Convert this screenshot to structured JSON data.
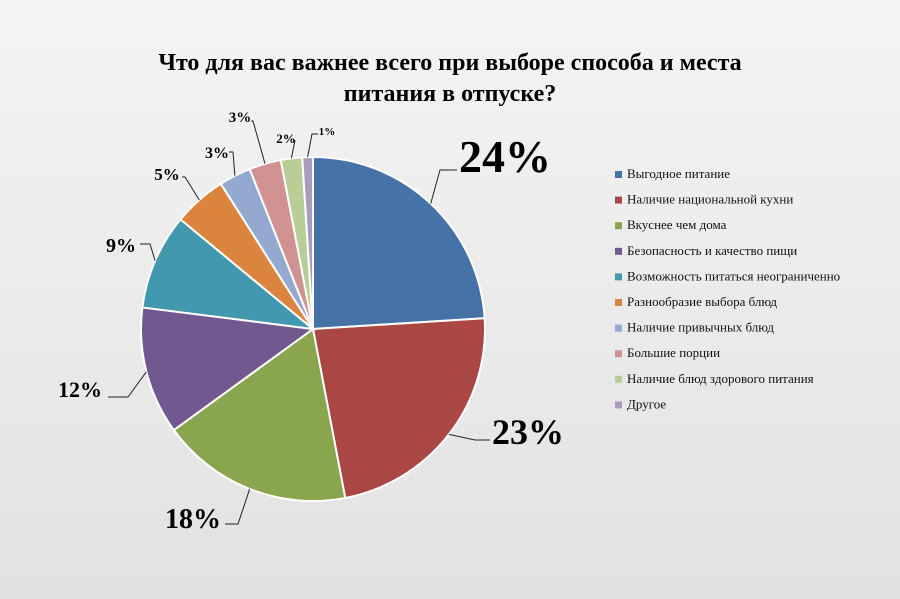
{
  "chart_data": {
    "type": "pie",
    "title": [
      "Что для вас важнее всего при выборе способа и места",
      "питания в отпуске?"
    ],
    "legend_position": "right",
    "labels_show_percent": true,
    "slices": [
      {
        "label": "Выгодное питание",
        "value": 24,
        "display": "24%",
        "color": "#4572A7"
      },
      {
        "label": "Наличие национальной  кухни",
        "value": 23,
        "display": "23%",
        "color": "#AA4643"
      },
      {
        "label": "Вкуснее чем дома",
        "value": 18,
        "display": "18%",
        "color": "#89A54E"
      },
      {
        "label": "Безопасность и качество пищи",
        "value": 12,
        "display": "12%",
        "color": "#71588F"
      },
      {
        "label": "Возможность питаться неограниченно",
        "value": 9,
        "display": "9%",
        "color": "#4198AF"
      },
      {
        "label": "Разнообразие выбора блюд",
        "value": 5,
        "display": "5%",
        "color": "#DB843D"
      },
      {
        "label": "Наличие привычных  блюд",
        "value": 3,
        "display": "3%",
        "color": "#93A9CF"
      },
      {
        "label": "Большие порции",
        "value": 3,
        "display": "3%",
        "color": "#D19392"
      },
      {
        "label": "Наличие блюд здорового питания",
        "value": 2,
        "display": "2%",
        "color": "#B9CD96"
      },
      {
        "label": "Другое",
        "value": 1,
        "display": "1%",
        "color": "#A99BBD"
      }
    ]
  }
}
